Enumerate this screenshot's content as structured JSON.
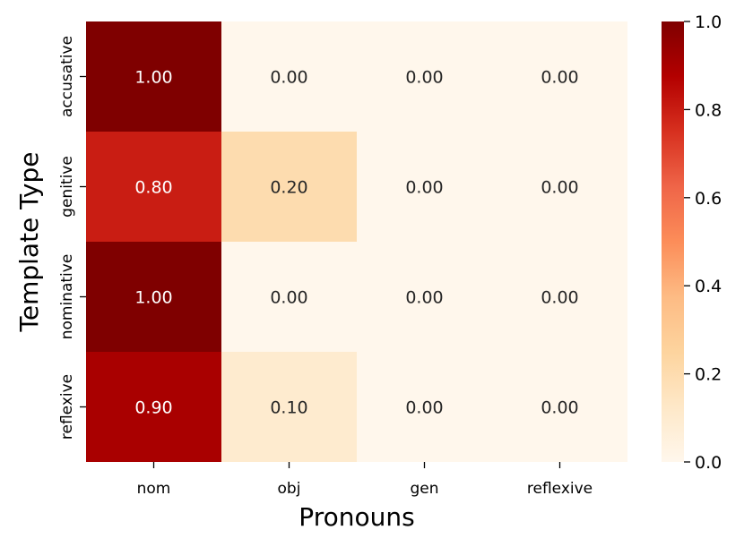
{
  "chart_data": {
    "type": "heatmap",
    "title": "",
    "xlabel": "Pronouns",
    "ylabel": "Template Type",
    "x_categories": [
      "nom",
      "obj",
      "gen",
      "reflexive"
    ],
    "y_categories": [
      "accusative",
      "genitive",
      "nominative",
      "reflexive"
    ],
    "values": [
      [
        1.0,
        0.0,
        0.0,
        0.0
      ],
      [
        0.8,
        0.2,
        0.0,
        0.0
      ],
      [
        1.0,
        0.0,
        0.0,
        0.0
      ],
      [
        0.9,
        0.1,
        0.0,
        0.0
      ]
    ],
    "value_labels": [
      [
        "1.00",
        "0.00",
        "0.00",
        "0.00"
      ],
      [
        "0.80",
        "0.20",
        "0.00",
        "0.00"
      ],
      [
        "1.00",
        "0.00",
        "0.00",
        "0.00"
      ],
      [
        "0.90",
        "0.10",
        "0.00",
        "0.00"
      ]
    ],
    "colorbar": {
      "range": [
        0.0,
        1.0
      ],
      "ticks": [
        0.0,
        0.2,
        0.4,
        0.6,
        0.8,
        1.0
      ],
      "tick_labels": [
        "0.0",
        "0.2",
        "0.4",
        "0.6",
        "0.8",
        "1.0"
      ],
      "colormap": "OrRd",
      "color_stops": [
        "#fff7ec",
        "#fee8c8",
        "#fdd49e",
        "#fdbb84",
        "#fc8d59",
        "#ef6548",
        "#d7301f",
        "#b30000",
        "#7f0000"
      ]
    }
  }
}
